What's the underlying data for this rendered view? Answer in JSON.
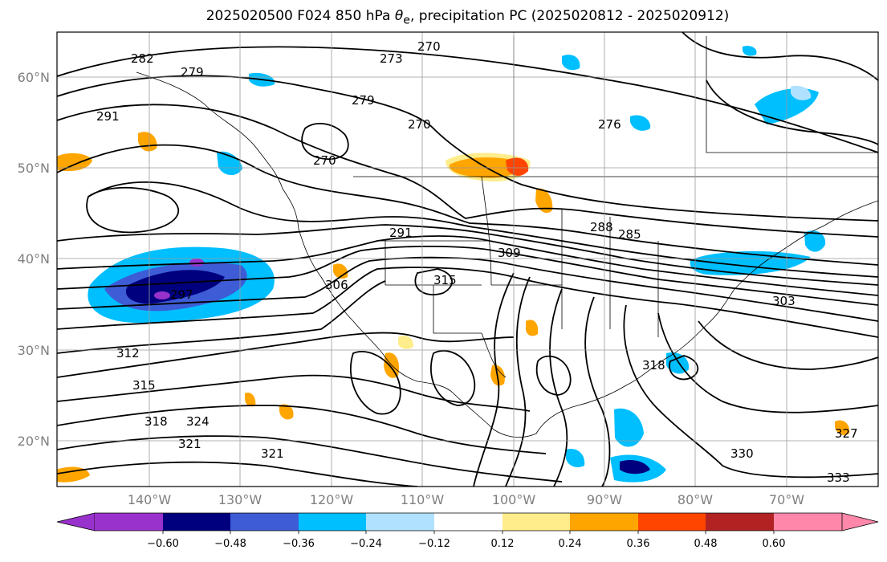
{
  "title": {
    "prefix": "2025020500 F024 850 hPa ",
    "theta": "θ",
    "sub": "e",
    "suffix": ", precipitation PC (2025020812 - 2025020912)"
  },
  "map": {
    "lat_ticks": [
      "60°N",
      "50°N",
      "40°N",
      "30°N",
      "20°N"
    ],
    "lon_ticks": [
      "140°W",
      "130°W",
      "120°W",
      "110°W",
      "100°W",
      "90°W",
      "80°W",
      "70°W"
    ],
    "contour_labels": [
      "270",
      "273",
      "276",
      "279",
      "282",
      "285",
      "288",
      "291",
      "297",
      "303",
      "306",
      "309",
      "312",
      "315",
      "318",
      "321",
      "324",
      "327",
      "330",
      "333"
    ]
  },
  "colorbar": {
    "ticks": [
      "−0.60",
      "−0.48",
      "−0.36",
      "−0.24",
      "−0.12",
      "0.12",
      "0.24",
      "0.36",
      "0.48",
      "0.60"
    ],
    "colors": [
      "#9932cc",
      "#00007f",
      "#3d5cd6",
      "#00bfff",
      "#b0e2ff",
      "#ffffff",
      "#ffec8b",
      "#ffa500",
      "#ff4500",
      "#b22222",
      "#ff88aa"
    ]
  }
}
